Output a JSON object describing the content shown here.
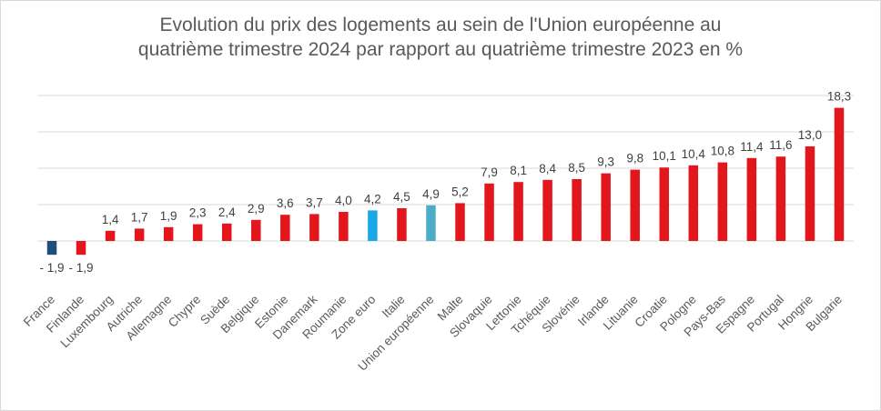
{
  "chart_data": {
    "type": "bar",
    "title_line1": "Evolution du prix des logements au sein de l'Union européenne au",
    "title_line2": "quatrième trimestre 2024 par rapport au quatrième trimestre 2023 en %",
    "xlabel": "",
    "ylabel": "",
    "ylim": [
      -4,
      20
    ],
    "grid": true,
    "legend": "none",
    "categories": [
      "France",
      "Finlande",
      "Luxembourg",
      "Autriche",
      "Allemagne",
      "Chypre",
      "Suède",
      "Belgique",
      "Estonie",
      "Danemark",
      "Roumanie",
      "Zone euro",
      "Italie",
      "Union européenne",
      "Malte",
      "Slovaquie",
      "Lettonie",
      "Tchéquie",
      "Slovénie",
      "Irlande",
      "Lituanie",
      "Croatie",
      "Pologne",
      "Pays-Bas",
      "Espagne",
      "Portugal",
      "Hongrie",
      "Bulgarie"
    ],
    "values": [
      -1.9,
      -1.9,
      1.4,
      1.7,
      1.9,
      2.3,
      2.4,
      2.9,
      3.6,
      3.7,
      4.0,
      4.2,
      4.5,
      4.9,
      5.2,
      7.9,
      8.1,
      8.4,
      8.5,
      9.3,
      9.8,
      10.1,
      10.4,
      10.8,
      11.4,
      11.6,
      13.0,
      18.3
    ],
    "value_labels": [
      "- 1,9",
      "- 1,9",
      "1,4",
      "1,7",
      "1,9",
      "2,3",
      "2,4",
      "2,9",
      "3,6",
      "3,7",
      "4,0",
      "4,2",
      "4,5",
      "4,9",
      "5,2",
      "7,9",
      "8,1",
      "8,4",
      "8,5",
      "9,3",
      "9,8",
      "10,1",
      "10,4",
      "10,8",
      "11,4",
      "11,6",
      "13,0",
      "18,3"
    ],
    "colors": [
      "#1f4e79",
      "#e3161d",
      "#e3161d",
      "#e3161d",
      "#e3161d",
      "#e3161d",
      "#e3161d",
      "#e3161d",
      "#e3161d",
      "#e3161d",
      "#e3161d",
      "#1aa7e6",
      "#e3161d",
      "#4bacc6",
      "#e3161d",
      "#e3161d",
      "#e3161d",
      "#e3161d",
      "#e3161d",
      "#e3161d",
      "#e3161d",
      "#e3161d",
      "#e3161d",
      "#e3161d",
      "#e3161d",
      "#e3161d",
      "#e3161d",
      "#e3161d"
    ]
  }
}
